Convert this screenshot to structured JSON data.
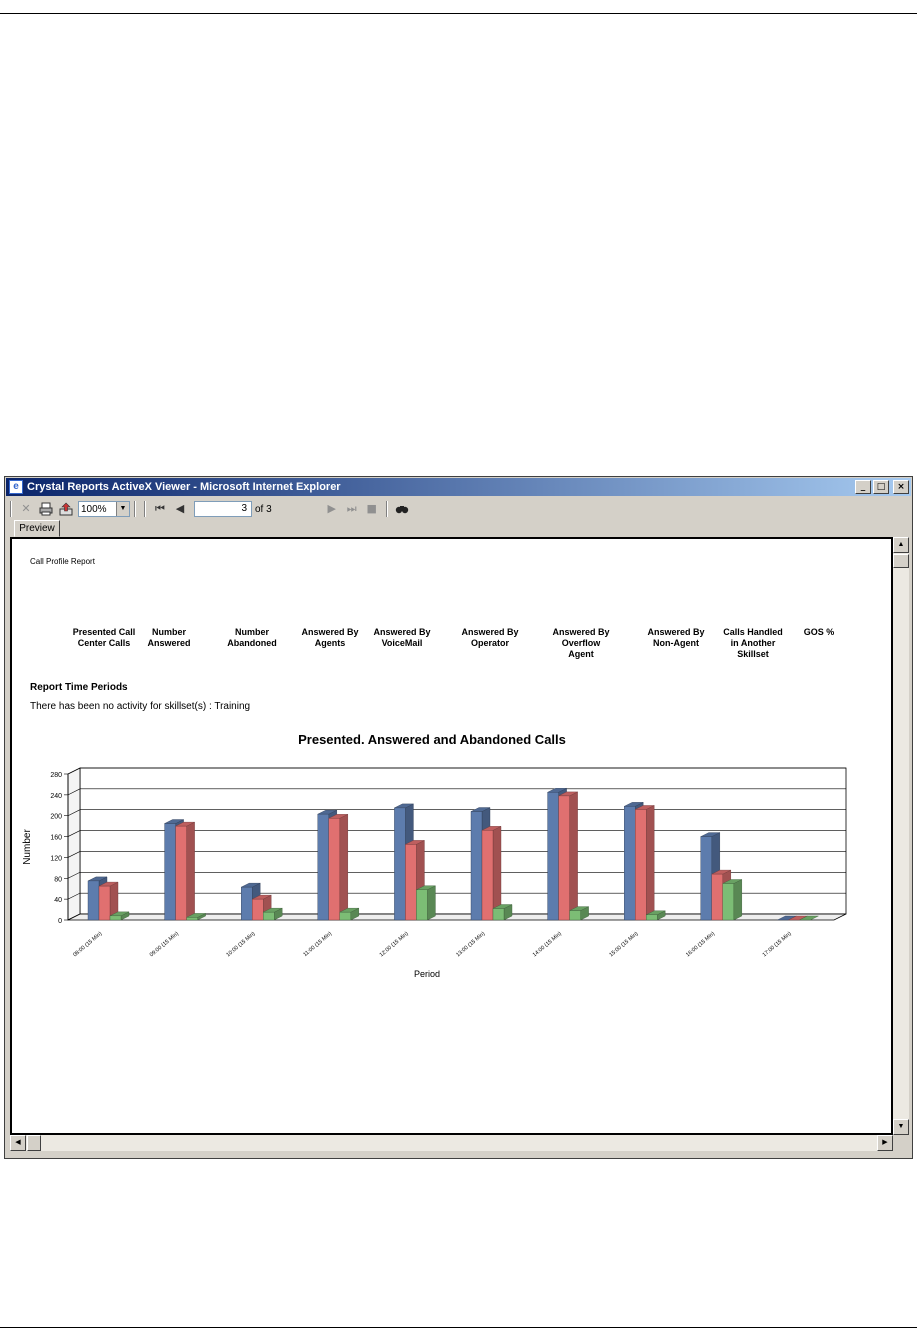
{
  "window": {
    "title": "Crystal Reports ActiveX Viewer - Microsoft Internet Explorer",
    "icon": "ie-page-icon",
    "controls": [
      "_",
      "□",
      "×"
    ]
  },
  "toolbar": {
    "zoom_value": "100%",
    "page_current": "3",
    "page_of": "of 3",
    "icons": [
      "close-report-icon",
      "print-icon",
      "export-icon",
      "first-page-icon",
      "prev-page-icon",
      "next-page-icon",
      "last-page-icon",
      "stop-icon",
      "search-icon"
    ]
  },
  "tabs": [
    "Preview"
  ],
  "report": {
    "title": "Call Profile Report",
    "columns": [
      "Presented Call\nCenter Calls",
      "Number\nAnswered",
      "Number\nAbandoned",
      "Answered By\nAgents",
      "Answered By\nVoiceMail",
      "Answered By\nOperator",
      "Answered By\nOverflow\nAgent",
      "Answered By\nNon-Agent",
      "Calls Handled\nin Another\nSkillset",
      "GOS %"
    ],
    "section_title": "Report Time Periods",
    "no_activity": "There has been no activity for skillset(s) : Training"
  },
  "colors": {
    "presented": "#5d7cad",
    "answered": "#e07070",
    "abandoned": "#7cbd75",
    "titlebar_start": "#0a246a",
    "titlebar_end": "#a6caf0"
  },
  "chart_data": {
    "type": "bar",
    "title": "Presented. Answered and Abandoned Calls",
    "xlabel": "Period",
    "ylabel": "Number",
    "ylim": [
      0,
      280
    ],
    "yticks": [
      0,
      40,
      80,
      120,
      160,
      200,
      240,
      280
    ],
    "grid": true,
    "categories": [
      "08:00 (15 Min)",
      "09:00 (15 Min)",
      "10:00 (15 Min)",
      "11:00 (15 Min)",
      "12:00 (15 Min)",
      "13:00 (15 Min)",
      "14:00 (15 Min)",
      "15:00 (15 Min)",
      "16:00 (15 Min)",
      "17:00 (15 Min)"
    ],
    "series": [
      {
        "values": [
          75,
          185,
          63,
          203,
          215,
          208,
          245,
          218,
          160,
          0
        ]
      },
      {
        "values": [
          65,
          180,
          40,
          195,
          145,
          172,
          238,
          212,
          88,
          0
        ]
      },
      {
        "values": [
          8,
          5,
          15,
          15,
          58,
          22,
          18,
          10,
          70,
          0
        ]
      }
    ]
  }
}
